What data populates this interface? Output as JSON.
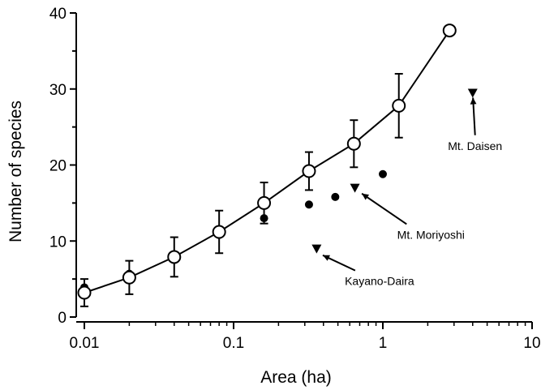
{
  "chart_data": {
    "type": "scatter",
    "title": "",
    "xlabel": "Area (ha)",
    "ylabel": "Number of species",
    "xscale": "log",
    "xlim": [
      0.01,
      10
    ],
    "ylim": [
      0,
      40
    ],
    "x_ticks": [
      {
        "value": 0.01,
        "label": "0.01"
      },
      {
        "value": 0.1,
        "label": "0.1"
      },
      {
        "value": 1,
        "label": "1"
      },
      {
        "value": 10,
        "label": "10"
      }
    ],
    "y_ticks": [
      {
        "value": 0,
        "label": "0"
      },
      {
        "value": 10,
        "label": "10"
      },
      {
        "value": 20,
        "label": "20"
      },
      {
        "value": 30,
        "label": "30"
      },
      {
        "value": 40,
        "label": "40"
      }
    ],
    "grid": false,
    "legend": "none",
    "series": [
      {
        "marker": "open-circle",
        "connected": true,
        "points": [
          {
            "x": 0.01,
            "y": 3.2,
            "err": 1.8
          },
          {
            "x": 0.02,
            "y": 5.2,
            "err": 2.2
          },
          {
            "x": 0.04,
            "y": 7.9,
            "err": 2.6
          },
          {
            "x": 0.08,
            "y": 11.2,
            "err": 2.8
          },
          {
            "x": 0.16,
            "y": 15.0,
            "err": 2.7
          },
          {
            "x": 0.32,
            "y": 19.2,
            "err": 2.5
          },
          {
            "x": 0.64,
            "y": 22.8,
            "err": 3.1
          },
          {
            "x": 1.28,
            "y": 27.8,
            "err": 4.2
          },
          {
            "x": 2.8,
            "y": 37.7,
            "err": 0
          }
        ]
      },
      {
        "marker": "filled-circle",
        "connected": false,
        "points": [
          {
            "x": 0.01,
            "y": 3.9
          },
          {
            "x": 0.02,
            "y": 5.7
          },
          {
            "x": 0.04,
            "y": 8.1
          },
          {
            "x": 0.08,
            "y": 10.8
          },
          {
            "x": 0.16,
            "y": 13.0
          },
          {
            "x": 0.32,
            "y": 14.8
          },
          {
            "x": 0.48,
            "y": 15.8
          },
          {
            "x": 1.0,
            "y": 18.8
          }
        ]
      },
      {
        "marker": "filled-triangle-down",
        "connected": false,
        "points": [
          {
            "x": 0.36,
            "y": 9.0,
            "label": "Kayano-Daira"
          },
          {
            "x": 0.65,
            "y": 17.0,
            "label": "Mt. Moriyoshi"
          },
          {
            "x": 4.0,
            "y": 29.5,
            "label": "Mt. Daisen"
          }
        ]
      }
    ],
    "annotations": [
      {
        "text": "Mt. Daisen",
        "target": {
          "x": 4.0,
          "y": 29.5
        },
        "text_at": {
          "x": 4.15,
          "y": 22.0
        }
      },
      {
        "text": "Mt. Moriyoshi",
        "target": {
          "x": 0.68,
          "y": 16.6
        },
        "text_at": {
          "x": 2.1,
          "y": 10.3
        }
      },
      {
        "text": "Kayano-Daira",
        "target": {
          "x": 0.37,
          "y": 8.4
        },
        "text_at": {
          "x": 0.95,
          "y": 4.2
        }
      }
    ]
  },
  "colors": {
    "ink": "#000000",
    "open_fill": "#ffffff"
  }
}
